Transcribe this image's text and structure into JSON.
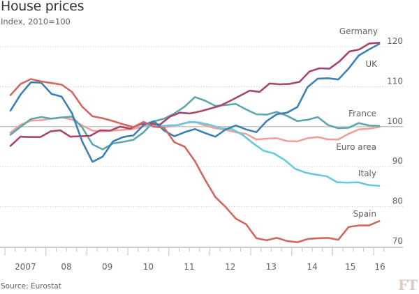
{
  "chart_data": {
    "type": "line",
    "title": "House prices",
    "subtitle": "Index, 2010=100",
    "source": "Source: Eurostat",
    "logo": "FT",
    "xlabel": "",
    "ylabel": "",
    "x_start": "2007 Q1",
    "x_frequency": "quarterly",
    "x_tick_labels": [
      "2007",
      "08",
      "09",
      "10",
      "11",
      "12",
      "13",
      "14",
      "15",
      "16"
    ],
    "y_ticks": [
      70,
      80,
      90,
      100,
      110,
      120
    ],
    "ylim": [
      70,
      122
    ],
    "reference_line": 100,
    "grid": true,
    "series": [
      {
        "name": "Germany",
        "label": "Germany",
        "color": "#a7456c",
        "values": [
          95.2,
          97.5,
          97.4,
          97.4,
          98.8,
          99.1,
          97.5,
          97.6,
          97.7,
          99.1,
          99.0,
          100.0,
          99.5,
          100.6,
          100.8,
          100.5,
          102.5,
          103.5,
          103.3,
          103.8,
          104.5,
          105.2,
          106.4,
          107.7,
          109.0,
          108.7,
          110.8,
          110.6,
          110.7,
          111.2,
          113.8,
          114.6,
          114.5,
          116.3,
          118.8,
          119.3,
          120.8,
          121.0
        ]
      },
      {
        "name": "UK",
        "label": "UK",
        "color": "#3c80b6",
        "values": [
          104.0,
          108.1,
          111.1,
          111.0,
          108.2,
          107.5,
          103.4,
          96.3,
          91.2,
          92.5,
          96.3,
          97.4,
          97.8,
          100.4,
          101.4,
          99.0,
          97.6,
          98.6,
          99.4,
          98.4,
          97.5,
          99.3,
          100.3,
          99.3,
          98.6,
          101.4,
          103.1,
          103.5,
          104.9,
          109.9,
          112.0,
          112.1,
          111.8,
          114.5,
          117.8,
          119.3,
          120.7
        ]
      },
      {
        "name": "France",
        "label": "France",
        "color": "#5ea6ad",
        "values": [
          98.0,
          100.0,
          101.9,
          102.4,
          102.0,
          102.3,
          102.5,
          99.8,
          95.6,
          94.3,
          95.8,
          96.2,
          96.7,
          98.6,
          101.3,
          102.0,
          103.3,
          105.0,
          107.4,
          106.5,
          105.2,
          105.4,
          105.7,
          104.3,
          103.1,
          103.0,
          103.7,
          102.7,
          101.4,
          101.7,
          102.4,
          100.4,
          99.6,
          99.7,
          100.9,
          100.3,
          100.2
        ]
      },
      {
        "name": "Euro area",
        "label": "Euro area",
        "color": "#f0a09a",
        "values": [
          98.5,
          100.5,
          101.5,
          101.6,
          102.0,
          102.3,
          101.8,
          100.3,
          99.0,
          98.8,
          99.0,
          99.2,
          99.4,
          100.1,
          100.1,
          99.9,
          100.2,
          100.9,
          101.2,
          100.3,
          99.6,
          99.2,
          98.6,
          98.2,
          96.8,
          97.0,
          97.1,
          96.4,
          96.3,
          97.1,
          97.4,
          96.8,
          96.8,
          98.2,
          99.3,
          99.5,
          99.9
        ]
      },
      {
        "name": "Italy",
        "label": "Italy",
        "color": "#68c8df",
        "values": [
          null,
          null,
          null,
          null,
          null,
          null,
          null,
          null,
          null,
          null,
          null,
          null,
          null,
          100.2,
          100.1,
          100.3,
          100.4,
          101.2,
          101.0,
          100.4,
          99.6,
          99.4,
          98.0,
          95.9,
          94.0,
          93.3,
          91.7,
          89.5,
          88.5,
          88.0,
          87.6,
          86.1,
          86.0,
          86.1,
          85.4,
          85.2
        ]
      },
      {
        "name": "Spain",
        "label": "Spain",
        "color": "#d06862",
        "values": [
          107.9,
          110.7,
          111.9,
          111.3,
          110.9,
          110.5,
          108.7,
          105.0,
          102.6,
          102.1,
          101.4,
          100.6,
          99.9,
          101.2,
          100.0,
          99.7,
          96.1,
          95.0,
          91.4,
          86.7,
          82.4,
          79.9,
          77.0,
          75.6,
          72.1,
          71.6,
          72.2,
          71.4,
          71.1,
          71.9,
          72.1,
          72.2,
          71.7,
          74.9,
          75.3,
          75.3,
          76.4
        ]
      }
    ]
  }
}
